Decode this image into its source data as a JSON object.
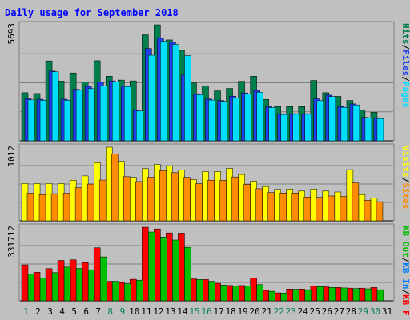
{
  "chart_data": {
    "title": "Daily usage for September 2018",
    "type": "bar",
    "days": [
      "1",
      "2",
      "3",
      "4",
      "5",
      "6",
      "7",
      "8",
      "9",
      "10",
      "11",
      "12",
      "13",
      "14",
      "15",
      "16",
      "17",
      "18",
      "19",
      "20",
      "21",
      "22",
      "23",
      "24",
      "25",
      "26",
      "27",
      "28",
      "29",
      "30",
      "31"
    ],
    "weekend_days": [
      "1",
      "8",
      "9",
      "15",
      "16",
      "22",
      "23",
      "29",
      "30"
    ],
    "panels": [
      {
        "id": "pages-files-hits",
        "axis_max_label": "5693",
        "max": 5693,
        "right_label_parts": [
          "Pages",
          "/",
          "Files",
          "/",
          "Hits"
        ],
        "series": [
          {
            "name": "Hits",
            "color": "#007E4C",
            "values": [
              2360,
              2320,
              3920,
              2930,
              3330,
              2890,
              3930,
              3170,
              2980,
              2940,
              5200,
              5693,
              4950,
              4440,
              2840,
              2700,
              2450,
              2570,
              2920,
              3170,
              2030,
              1680,
              1680,
              1680,
              2960,
              2360,
              2180,
              1980,
              1500,
              1400,
              null
            ]
          },
          {
            "name": "Files",
            "color": "#1F3FEE",
            "values": [
              2060,
              2040,
              3420,
              2040,
              2530,
              2670,
              2890,
              2940,
              2690,
              1500,
              4530,
              5040,
              4840,
              3230,
              2310,
              2050,
              1980,
              2190,
              2350,
              2470,
              1670,
              1330,
              1330,
              1330,
              2060,
              2240,
              1680,
              1810,
              1150,
              1130,
              null
            ]
          },
          {
            "name": "Pages",
            "color": "#00DEFF",
            "values": [
              2010,
              1990,
              3390,
              1990,
              2480,
              2560,
              2700,
              2880,
              2660,
              1460,
              4200,
              4890,
              4730,
              4180,
              2260,
              2000,
              1940,
              2090,
              2300,
              2380,
              1630,
              1290,
              1300,
              1300,
              1970,
              2170,
              1640,
              1760,
              1120,
              1090,
              null
            ]
          }
        ]
      },
      {
        "id": "visits-sites",
        "axis_max_label": "1012",
        "max": 1012,
        "right_label_parts": [
          "Sites",
          "/",
          "Visits"
        ],
        "series": [
          {
            "name": "Visits",
            "color": "#FFFF00",
            "values": [
              512,
              512,
              512,
              512,
              558,
              617,
              800,
              1012,
              819,
              598,
              717,
              775,
              756,
              697,
              567,
              676,
              676,
              720,
              637,
              545,
              471,
              431,
              436,
              409,
              436,
              409,
              396,
              703,
              361,
              312,
              null
            ]
          },
          {
            "name": "Sites",
            "color": "#FF8C00",
            "values": [
              380,
              360,
              373,
              380,
              454,
              505,
              560,
              920,
              607,
              540,
              600,
              688,
              662,
              597,
              511,
              557,
              557,
              603,
              500,
              441,
              388,
              382,
              382,
              327,
              322,
              341,
              336,
              520,
              281,
              263,
              null
            ]
          }
        ]
      },
      {
        "id": "kbf-kbin-kbout",
        "axis_max_label": "331712",
        "max": 331712,
        "right_label_parts": [
          "KB F",
          "/",
          "KB In",
          "/",
          "KB Out"
        ],
        "series": [
          {
            "name": "KB F",
            "color": "#FF0000",
            "values": [
              162000,
              129000,
              145000,
              182000,
              185000,
              172000,
              239000,
              88000,
              82000,
              97000,
              331712,
              324000,
              306000,
              305000,
              99000,
              96000,
              79000,
              69000,
              69000,
              103000,
              47000,
              36000,
              53000,
              53000,
              66000,
              63000,
              60000,
              57000,
              57000,
              60000,
              null
            ]
          },
          {
            "name": "KB In",
            "color": "#0080FF",
            "values": [
              0,
              0,
              0,
              0,
              0,
              0,
              0,
              0,
              0,
              0,
              0,
              0,
              0,
              0,
              0,
              0,
              0,
              0,
              0,
              0,
              0,
              0,
              0,
              0,
              0,
              0,
              0,
              0,
              0,
              0,
              null
            ]
          },
          {
            "name": "KB Out",
            "color": "#00C000",
            "values": [
              120000,
              102000,
              127000,
              152000,
              146000,
              140000,
              198000,
              88000,
              77000,
              93000,
              310000,
              287000,
              274000,
              241000,
              96000,
              88000,
              71000,
              67000,
              66000,
              73000,
              43000,
              35000,
              52000,
              50000,
              64000,
              60000,
              58000,
              55000,
              54000,
              50000,
              null
            ]
          }
        ]
      }
    ]
  },
  "colors": {
    "background": "#C0C0C0",
    "title": "#0000FF",
    "axis_label": "#000000",
    "weekday_label": "#000000",
    "weekend_label": "#00805C",
    "grid": "#808080",
    "separator": "#808080"
  }
}
